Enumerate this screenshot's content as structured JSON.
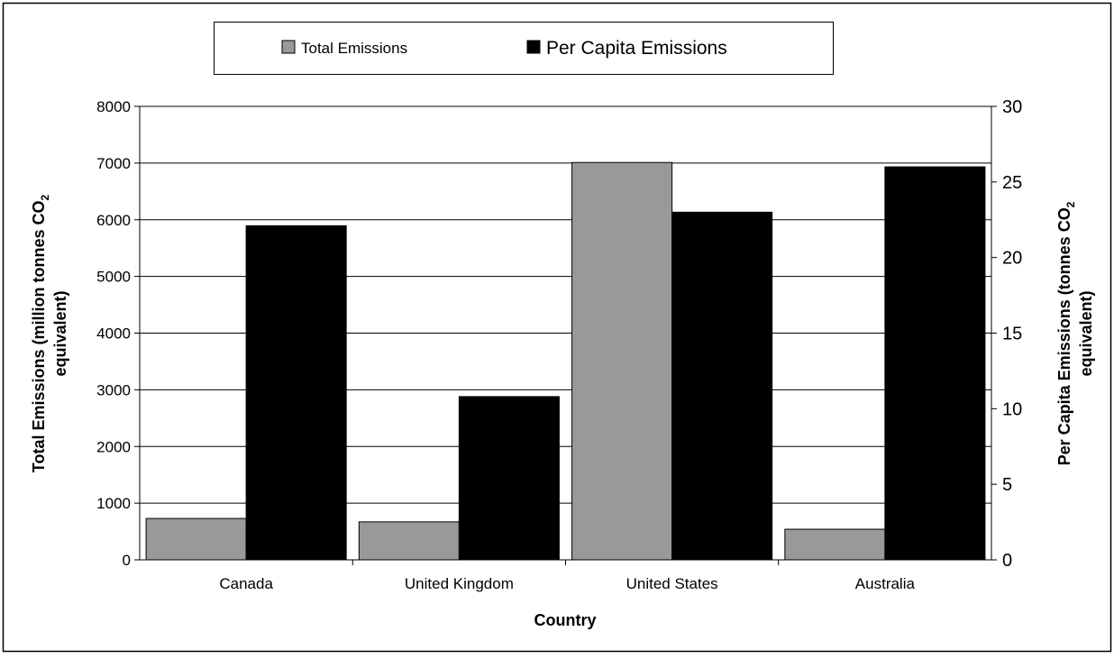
{
  "chart_data": {
    "type": "bar",
    "categories": [
      "Canada",
      "United Kingdom",
      "United States",
      "Australia"
    ],
    "series": [
      {
        "name": "Total Emissions",
        "axis": "left",
        "color": "#999999",
        "values": [
          730,
          670,
          7010,
          540
        ]
      },
      {
        "name": "Per Capita Emissions",
        "axis": "right",
        "color": "#000000",
        "values": [
          22.1,
          10.8,
          23.0,
          26.0
        ]
      }
    ],
    "xlabel": "Country",
    "ylabel_left": {
      "line1_prefix": "Total Emissions (million tonnes CO",
      "line1_sub": "2",
      "line2": "equivalent)"
    },
    "ylabel_right": {
      "line1_prefix": "Per Capita Emissions (tonnes CO",
      "line1_sub": "2",
      "line2": "equivalent)"
    },
    "ylim_left": [
      0,
      8000
    ],
    "ylim_right": [
      0,
      30
    ],
    "yticks_left": [
      "0",
      "1000",
      "2000",
      "3000",
      "4000",
      "5000",
      "6000",
      "7000",
      "8000"
    ],
    "yticks_right": [
      "0",
      "5",
      "10",
      "15",
      "20",
      "25",
      "30"
    ],
    "grid": true,
    "legend": "top"
  }
}
